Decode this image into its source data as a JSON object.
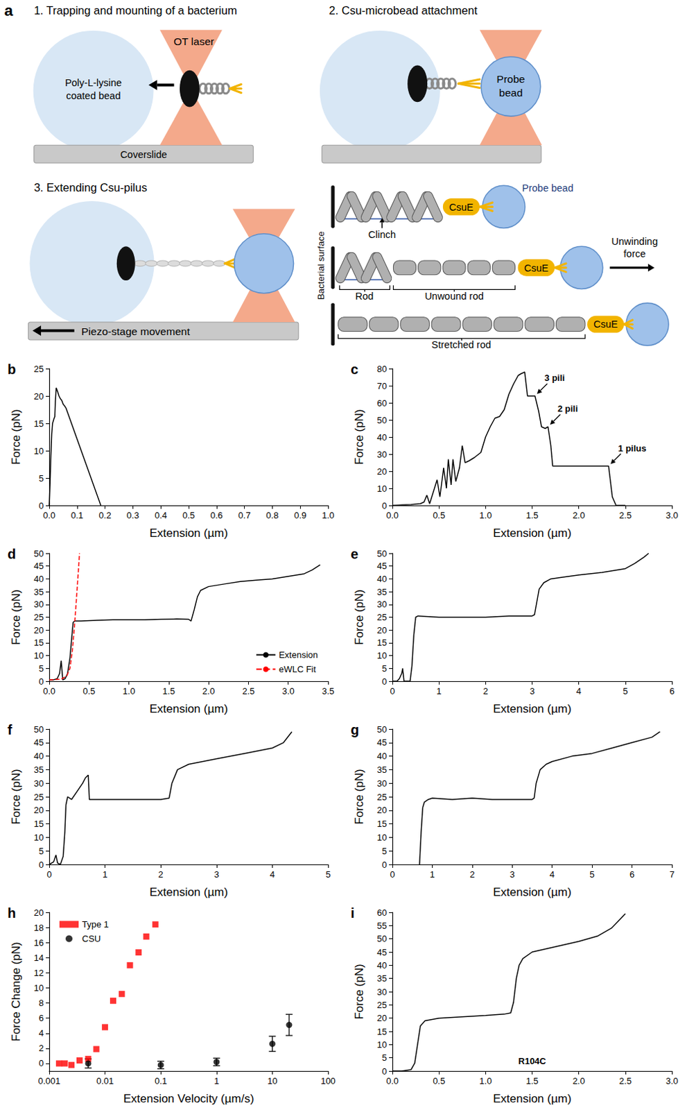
{
  "diagram": {
    "panel": "a",
    "steps": [
      "1. Trapping and mounting of a bacterium",
      "2. Csu-microbead attachment",
      "3. Extending Csu-pilus"
    ],
    "ot_laser": "OT laser",
    "coated_bead": [
      "Poly-L-lysine",
      "coated bead"
    ],
    "coverslide": "Coverslide",
    "probe_bead": [
      "Probe",
      "bead"
    ],
    "stage": "Piezo-stage movement",
    "detail": {
      "surface": "Bacterial surface",
      "probe_bead": "Probe bead",
      "csue": "CsuE",
      "clinch": "Clinch",
      "rod": "Rod",
      "unwound_rod": "Unwound rod",
      "force": [
        "Unwinding",
        "force"
      ],
      "stretched_rod": "Stretched rod"
    }
  },
  "chart_data": [
    {
      "panel": "b",
      "type": "line",
      "x_label": "Extension (µm)",
      "y_label": "Force (pN)",
      "color": "#000000",
      "grid": false,
      "xlim": [
        0,
        1
      ],
      "ylim": [
        0,
        25
      ],
      "xticks": [
        {
          "value": 0,
          "label": "0.0"
        },
        0.1,
        0.2,
        0.3,
        0.4,
        0.5,
        0.6,
        0.7,
        0.8,
        0.9,
        {
          "value": 1,
          "label": "1.0"
        }
      ],
      "yticks": [
        0,
        5,
        10,
        15,
        20,
        25
      ],
      "x": [
        0,
        0.003,
        0.006,
        0.009,
        0.012,
        0.015,
        0.018,
        0.02,
        0.022,
        0.025,
        0.03,
        0.035,
        0.04,
        0.045,
        0.05,
        0.055,
        0.06,
        0.185
      ],
      "values": [
        0,
        4,
        9,
        13,
        15,
        15.5,
        16,
        16.2,
        19,
        21.5,
        20.8,
        20,
        19.5,
        19.2,
        18.5,
        18.2,
        17.8,
        0
      ]
    },
    {
      "panel": "c",
      "type": "line",
      "x_label": "Extension (µm)",
      "y_label": "Force (pN)",
      "color": "#000000",
      "grid": false,
      "xlim": [
        0,
        3
      ],
      "ylim": [
        0,
        80
      ],
      "xticks": [
        {
          "value": 0,
          "label": "0.0"
        },
        0.5,
        {
          "value": 1,
          "label": "1.0"
        },
        1.5,
        {
          "value": 2,
          "label": "2.0"
        },
        2.5,
        {
          "value": 3,
          "label": "3.0"
        }
      ],
      "yticks": [
        0,
        10,
        20,
        30,
        40,
        50,
        60,
        70,
        80
      ],
      "x": [
        0,
        0.1,
        0.2,
        0.3,
        0.34,
        0.37,
        0.4,
        0.44,
        0.48,
        0.51,
        0.55,
        0.58,
        0.6,
        0.63,
        0.65,
        0.68,
        0.72,
        0.75,
        0.78,
        0.82,
        0.88,
        0.95,
        1.0,
        1.05,
        1.1,
        1.15,
        1.2,
        1.25,
        1.3,
        1.35,
        1.38,
        1.42,
        1.45,
        1.5,
        1.53,
        1.57,
        1.6,
        1.64,
        1.67,
        1.7,
        1.72,
        1.8,
        2.0,
        2.2,
        2.32,
        2.36,
        2.4,
        2.5
      ],
      "values": [
        0,
        0.3,
        0.5,
        1,
        2,
        6,
        1,
        8,
        15,
        5,
        22,
        10,
        27,
        12,
        27,
        14,
        22,
        35,
        25,
        26,
        28,
        31,
        40,
        46,
        51,
        52,
        56,
        65,
        71,
        76,
        77,
        78,
        64,
        64,
        64,
        55,
        46,
        45,
        46,
        35,
        23,
        23,
        23,
        23,
        23,
        5,
        0,
        0
      ],
      "annotations": [
        {
          "text": "3 pili",
          "x": 1.53,
          "y": 64
        },
        {
          "text": "2 pili",
          "x": 1.67,
          "y": 46
        },
        {
          "text": "1 pilus",
          "x": 2.32,
          "y": 23
        }
      ]
    },
    {
      "panel": "d",
      "type": "line",
      "x_label": "Extension (µm)",
      "y_label": "Force (pN)",
      "grid": false,
      "legend": "lower right",
      "xlim": [
        0,
        3.5
      ],
      "ylim": [
        0,
        50
      ],
      "xticks": [
        {
          "value": 0,
          "label": "0.0"
        },
        0.5,
        {
          "value": 1,
          "label": "1.0"
        },
        1.5,
        {
          "value": 2,
          "label": "2.0"
        },
        2.5,
        {
          "value": 3,
          "label": "3.0"
        },
        3.5
      ],
      "yticks": [
        0,
        5,
        10,
        15,
        20,
        25,
        30,
        35,
        40,
        45,
        50
      ],
      "series": [
        {
          "name": "Extension",
          "color": "#000000",
          "line_style": "solid",
          "x": [
            0,
            0.05,
            0.1,
            0.13,
            0.15,
            0.17,
            0.2,
            0.23,
            0.26,
            0.28,
            0.3,
            0.32,
            0.4,
            0.6,
            0.8,
            1.0,
            1.2,
            1.4,
            1.6,
            1.75,
            1.78,
            1.82,
            1.86,
            1.9,
            2.0,
            2.2,
            2.4,
            2.6,
            2.8,
            3.0,
            3.2,
            3.3,
            3.4
          ],
          "values": [
            0.5,
            0.5,
            1,
            3,
            8,
            0.5,
            1,
            3,
            9,
            16,
            23,
            23.5,
            23.5,
            23.8,
            24,
            24,
            24,
            24.2,
            24.3,
            24.2,
            23.5,
            28,
            33,
            35.5,
            37,
            38,
            39,
            39.5,
            40,
            41,
            42,
            43.5,
            45.5
          ]
        },
        {
          "name": "eWLC Fit",
          "color": "#ff0000",
          "line_style": "dashed",
          "x": [
            0,
            0.15,
            0.22,
            0.26,
            0.29,
            0.31,
            0.33,
            0.35,
            0.37,
            0.38
          ],
          "values": [
            0.5,
            0.8,
            2,
            5,
            12,
            19,
            27,
            36,
            45,
            50
          ]
        }
      ]
    },
    {
      "panel": "e",
      "type": "line",
      "x_label": "Extension (µm)",
      "y_label": "Force (pN)",
      "color": "#000000",
      "grid": false,
      "xlim": [
        0,
        6
      ],
      "ylim": [
        0,
        50
      ],
      "xticks": [
        0,
        1,
        2,
        3,
        4,
        5,
        6
      ],
      "yticks": [
        0,
        5,
        10,
        15,
        20,
        25,
        30,
        35,
        40,
        45,
        50
      ],
      "x": [
        0,
        0.1,
        0.15,
        0.2,
        0.22,
        0.25,
        0.3,
        0.38,
        0.42,
        0.46,
        0.5,
        0.55,
        1.0,
        1.5,
        2.0,
        2.5,
        3.0,
        3.05,
        3.1,
        3.15,
        3.25,
        3.4,
        3.6,
        4.0,
        4.5,
        5.0,
        5.2,
        5.4,
        5.5
      ],
      "values": [
        0,
        0,
        1,
        3,
        5,
        0,
        0,
        0,
        6,
        18,
        25,
        25.5,
        25,
        25,
        25,
        25.5,
        25.5,
        26,
        31,
        36,
        38.5,
        40,
        40.5,
        41.5,
        42.5,
        44,
        46,
        48.5,
        50
      ]
    },
    {
      "panel": "f",
      "type": "line",
      "x_label": "Extension (µm)",
      "y_label": "Force (pN)",
      "color": "#000000",
      "grid": false,
      "xlim": [
        0,
        5
      ],
      "ylim": [
        0,
        50
      ],
      "xticks": [
        0,
        1,
        2,
        3,
        4,
        5
      ],
      "yticks": [
        0,
        5,
        10,
        15,
        20,
        25,
        30,
        35,
        40,
        45,
        50
      ],
      "x": [
        0,
        0.08,
        0.12,
        0.15,
        0.2,
        0.25,
        0.28,
        0.3,
        0.33,
        0.4,
        0.5,
        0.6,
        0.65,
        0.7,
        0.72,
        0.8,
        1.0,
        1.5,
        2.0,
        2.15,
        2.2,
        2.3,
        2.5,
        3.0,
        3.5,
        4.0,
        4.2,
        4.35
      ],
      "values": [
        0,
        1,
        3.5,
        0.5,
        0,
        3,
        12,
        22,
        25,
        24,
        27,
        30,
        32,
        33,
        24,
        24,
        24,
        24,
        24,
        24.5,
        30,
        35,
        37,
        39,
        41,
        43,
        45,
        49
      ]
    },
    {
      "panel": "g",
      "type": "line",
      "x_label": "Extension (µm)",
      "y_label": "Force (pN)",
      "color": "#000000",
      "grid": false,
      "xlim": [
        0,
        7
      ],
      "ylim": [
        0,
        50
      ],
      "xticks": [
        0,
        1,
        2,
        3,
        4,
        5,
        6,
        7
      ],
      "yticks": [
        0,
        5,
        10,
        15,
        20,
        25,
        30,
        35,
        40,
        45,
        50
      ],
      "x": [
        0.68,
        0.72,
        0.76,
        0.8,
        0.9,
        1.0,
        1.5,
        2.0,
        2.5,
        3.0,
        3.5,
        3.55,
        3.6,
        3.7,
        3.85,
        4.0,
        4.5,
        5.0,
        5.5,
        6.0,
        6.5,
        6.7
      ],
      "values": [
        0,
        12,
        21,
        23,
        24,
        24.5,
        24,
        24.5,
        24,
        24,
        24,
        24.5,
        30,
        35,
        37,
        38,
        40,
        41,
        43,
        45,
        47,
        49
      ]
    },
    {
      "panel": "h",
      "type": "scatter",
      "x_label": "Extension Velocity (µm/s)",
      "y_label": "Force Change (pN)",
      "grid": false,
      "log": "x",
      "legend": "upper left",
      "xlim": [
        0.001,
        100
      ],
      "ylim": [
        -1,
        20
      ],
      "xticks": [
        0.001,
        0.01,
        0.1,
        1,
        10,
        100
      ],
      "yticks": [
        0,
        2,
        4,
        6,
        8,
        10,
        12,
        14,
        16,
        18,
        20
      ],
      "series": [
        {
          "name": "Type 1",
          "color": "#ff0000",
          "marker": "square",
          "x": [
            0.0015,
            0.0019,
            0.0025,
            0.0035,
            0.005,
            0.007,
            0.01,
            0.014,
            0.02,
            0.028,
            0.04,
            0.055,
            0.08
          ],
          "values": [
            0,
            0,
            -0.2,
            0.4,
            0.6,
            1.9,
            4.8,
            8.3,
            9.2,
            13,
            14.7,
            16.8,
            18.4
          ]
        },
        {
          "name": "CSU",
          "color": "#000000",
          "marker": "circle",
          "x": [
            0.005,
            0.1,
            1,
            10,
            20
          ],
          "values": [
            0,
            -0.2,
            0.2,
            2.6,
            5.1
          ],
          "errors": [
            0.6,
            0.5,
            0.5,
            1.0,
            1.4
          ]
        }
      ]
    },
    {
      "panel": "i",
      "type": "line",
      "x_label": "Extension (µm)",
      "y_label": "Force (pN)",
      "color": "#000000",
      "grid": false,
      "xlim": [
        0,
        3
      ],
      "ylim": [
        0,
        60
      ],
      "xticks": [
        {
          "value": 0,
          "label": "0.0"
        },
        0.5,
        {
          "value": 1,
          "label": "1.0"
        },
        1.5,
        {
          "value": 2,
          "label": "2.0"
        },
        2.5,
        {
          "value": 3,
          "label": "3.0"
        }
      ],
      "yticks": [
        0,
        5,
        10,
        15,
        20,
        25,
        30,
        35,
        40,
        45,
        50,
        55,
        60
      ],
      "x": [
        0,
        0.1,
        0.2,
        0.24,
        0.27,
        0.3,
        0.35,
        0.5,
        0.75,
        1.0,
        1.2,
        1.27,
        1.3,
        1.33,
        1.36,
        1.4,
        1.5,
        1.75,
        2.0,
        2.2,
        2.35,
        2.5
      ],
      "values": [
        0,
        0,
        0.5,
        3,
        10,
        17,
        19,
        20,
        20.5,
        21,
        21.5,
        22,
        26,
        35,
        40,
        42.5,
        45,
        47,
        49,
        51,
        54,
        59.5
      ],
      "note": "R104C"
    }
  ]
}
